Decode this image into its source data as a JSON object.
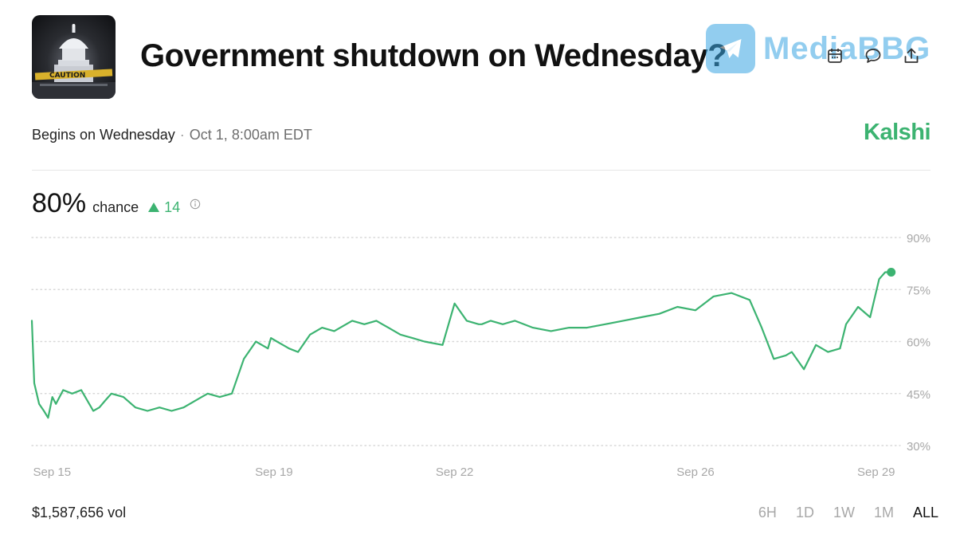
{
  "market": {
    "title": "Government shutdown on Wednesday?",
    "thumbnail_caption": "CAUTION",
    "subtitle_lead": "Begins on Wednesday",
    "subtitle_separator": "·",
    "subtitle_date": "Oct 1, 8:00am EDT",
    "brand": "Kalshi"
  },
  "watermark": {
    "text": "MediaBBG",
    "icon": "telegram-icon"
  },
  "header_icons": [
    "calendar-icon",
    "comment-icon",
    "share-icon"
  ],
  "probability": {
    "value": "80%",
    "label": "chance",
    "change": "14",
    "change_direction": "up",
    "info_icon": "info-icon"
  },
  "footer": {
    "volume": "$1,587,656 vol",
    "ranges": [
      "6H",
      "1D",
      "1W",
      "1M",
      "ALL"
    ],
    "active_range": "ALL"
  },
  "colors": {
    "accent": "#3cb371",
    "grid": "#d8d8d8",
    "axis_text": "#a8a8a8"
  },
  "chart_data": {
    "type": "line",
    "title": "",
    "xlabel": "",
    "ylabel": "",
    "x_ticks": [
      "Sep 15",
      "Sep 19",
      "Sep 22",
      "Sep 26",
      "Sep 29"
    ],
    "x_tick_days": [
      15,
      19,
      22,
      26,
      29
    ],
    "xlim": [
      14.98,
      29.4
    ],
    "y_ticks": [
      "90%",
      "75%",
      "60%",
      "45%",
      "30%"
    ],
    "y_tick_values": [
      90,
      75,
      60,
      45,
      30
    ],
    "ylim": [
      30,
      90
    ],
    "grid": "horizontal dotted",
    "series": [
      {
        "x": [
          14.98,
          15.02,
          15.1,
          15.18,
          15.25,
          15.32,
          15.38,
          15.5,
          15.65,
          15.8,
          16.0,
          16.1,
          16.2,
          16.3,
          16.5,
          16.7,
          16.9,
          17.1,
          17.3,
          17.5,
          17.7,
          17.9,
          18.1,
          18.3,
          18.5,
          18.7,
          18.9,
          18.95,
          19.05,
          19.15,
          19.25,
          19.4,
          19.6,
          19.8,
          20.0,
          20.3,
          20.5,
          20.7,
          20.8,
          20.9,
          21.1,
          21.3,
          21.5,
          21.8,
          22.0,
          22.2,
          22.4,
          22.45,
          22.6,
          22.8,
          23.0,
          23.3,
          23.6,
          23.9,
          24.2,
          24.5,
          24.8,
          25.1,
          25.4,
          25.7,
          26.0,
          26.3,
          26.6,
          26.9,
          27.1,
          27.3,
          27.5,
          27.6,
          27.8,
          28.0,
          28.2,
          28.4,
          28.5,
          28.7,
          28.9,
          29.05,
          29.15,
          29.2,
          29.25
        ],
        "y": [
          66,
          48,
          42,
          40,
          38,
          44,
          42,
          46,
          45,
          46,
          40,
          41,
          43,
          45,
          44,
          41,
          40,
          41,
          40,
          41,
          43,
          45,
          44,
          45,
          55,
          60,
          58,
          61,
          60,
          59,
          58,
          57,
          62,
          64,
          63,
          66,
          65,
          66,
          65,
          64,
          62,
          61,
          60,
          59,
          71,
          66,
          65,
          65,
          66,
          65,
          66,
          64,
          63,
          64,
          64,
          65,
          66,
          67,
          68,
          70,
          69,
          73,
          74,
          72,
          64,
          55,
          56,
          57,
          52,
          59,
          57,
          58,
          65,
          70,
          67,
          78,
          80,
          80,
          80
        ]
      }
    ],
    "current_value": 80
  }
}
